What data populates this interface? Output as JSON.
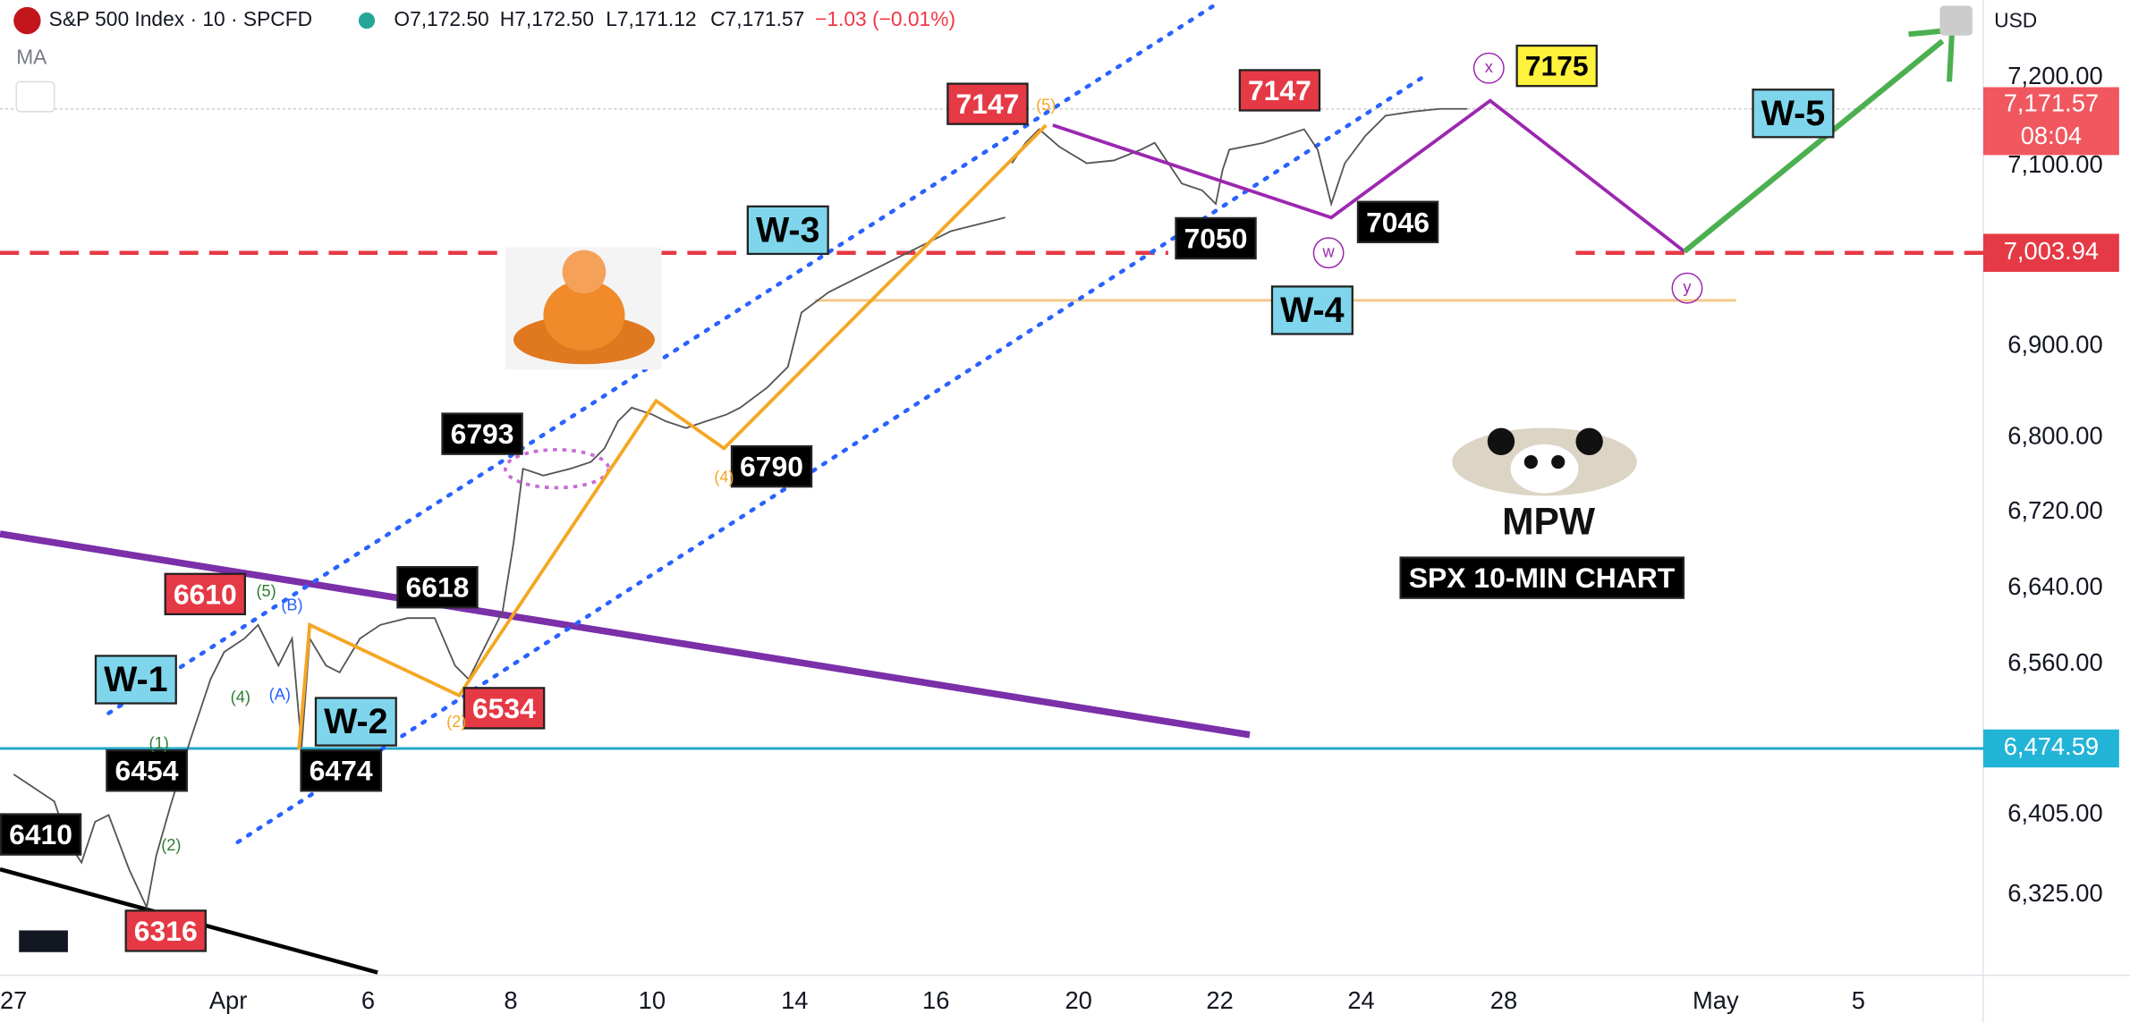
{
  "header": {
    "symbol": "S&P 500 Index · 10 · SPCFD",
    "open": "O7,172.50",
    "high": "H7,172.50",
    "low": "L7,171.12",
    "close": "C7,171.57",
    "change": "−1.03 (−0.01%)",
    "indicator": "MA",
    "currency": "USD"
  },
  "price_axis": {
    "labels": [
      "7,200.00",
      "7,100.00",
      "6,900.00",
      "6,800.00",
      "6,720.00",
      "6,640.00",
      "6,560.00",
      "6,405.00",
      "6,325.00"
    ],
    "last_price": "7,171.57",
    "countdown": "08:04",
    "level_red": "7,003.94",
    "level_cyan": "6,474.59"
  },
  "time_axis": {
    "labels": [
      "27",
      "Apr",
      "6",
      "8",
      "10",
      "14",
      "16",
      "20",
      "22",
      "24",
      "28",
      "May",
      "5"
    ]
  },
  "annotations": {
    "black_labels": [
      "6410",
      "6454",
      "6474",
      "6618",
      "6793",
      "6790",
      "7050",
      "7046"
    ],
    "red_labels": [
      "6316",
      "6610",
      "6534",
      "7147",
      "7147"
    ],
    "highlight": "7175",
    "waves": [
      "W-1",
      "W-2",
      "W-3",
      "W-4",
      "W-5"
    ],
    "counts": [
      "(1)",
      "(2)",
      "(4)",
      "(5)",
      "(A)",
      "(B)",
      "(2)",
      "(4)",
      "(5)",
      "x",
      "w",
      "y"
    ]
  },
  "logo": {
    "brand": "MPW",
    "caption": "SPX 10-MIN CHART"
  }
}
